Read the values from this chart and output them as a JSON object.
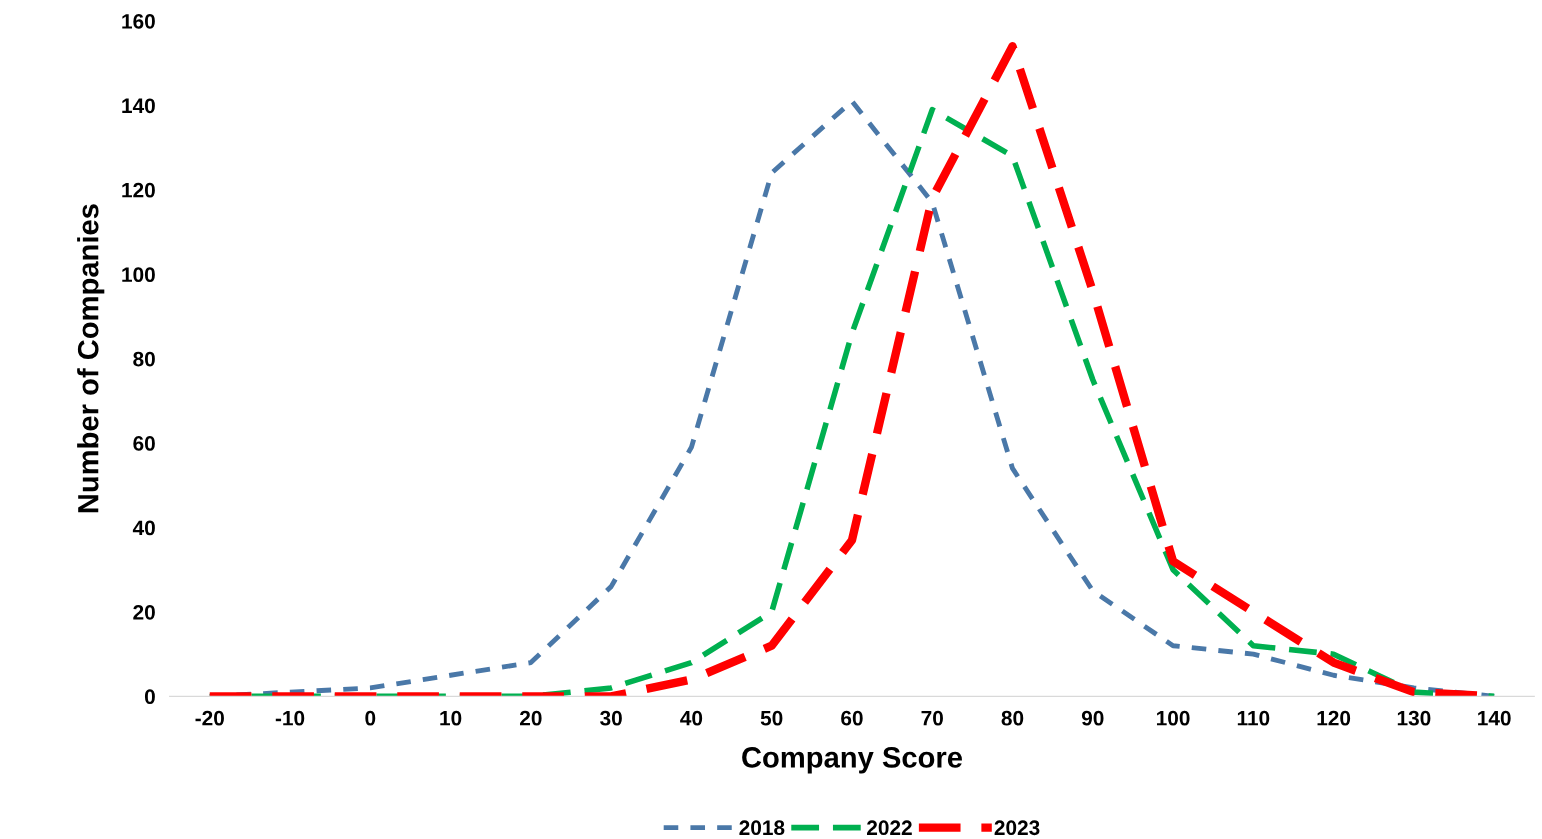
{
  "chart_data": {
    "type": "line",
    "xlabel": "Company Score",
    "ylabel": "Number of Companies",
    "categories": [
      "-20",
      "-10",
      "0",
      "10",
      "20",
      "30",
      "40",
      "50",
      "60",
      "70",
      "80",
      "90",
      "100",
      "110",
      "120",
      "130",
      "140"
    ],
    "series": [
      {
        "name": "2018",
        "color": "#4a78a8",
        "line_style": "dotted",
        "values": [
          0,
          1,
          2,
          5,
          8,
          26,
          59,
          124,
          141,
          117,
          54,
          25,
          12,
          10,
          5,
          2,
          0
        ]
      },
      {
        "name": "2022",
        "color": "#00b050",
        "line_style": "dashed",
        "values": [
          0,
          0,
          0,
          0,
          0,
          2,
          8,
          20,
          86,
          139,
          128,
          75,
          30,
          12,
          10,
          1,
          0
        ]
      },
      {
        "name": "2023",
        "color": "#ff0000",
        "line_style": "dashed",
        "values": [
          0,
          0,
          0,
          0,
          0,
          0,
          4,
          12,
          37,
          118,
          154,
          96,
          32,
          20,
          8,
          1,
          0
        ]
      }
    ],
    "ylim": [
      0,
      160
    ],
    "yticks": [
      0,
      20,
      40,
      60,
      80,
      100,
      120,
      140,
      160
    ],
    "grid": false,
    "legend": "bottom",
    "marker": "none"
  }
}
